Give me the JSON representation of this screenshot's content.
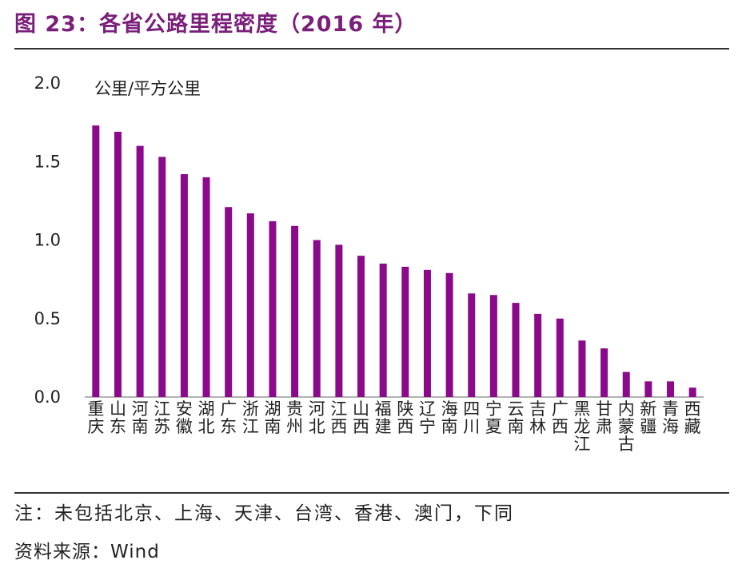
{
  "figure": {
    "title": "图 23：各省公路里程密度（2016 年）",
    "note": "注：未包括北京、上海、天津、台湾、香港、澳门，下同",
    "source": "资料来源：Wind"
  },
  "colors": {
    "bar": "#8b0a8b",
    "title": "#7a1f7a",
    "axis": "#999999"
  },
  "chart_data": {
    "type": "bar",
    "unit_label": "公里/平方公里",
    "categories": [
      "重庆",
      "山东",
      "河南",
      "江苏",
      "安徽",
      "湖北",
      "广东",
      "浙江",
      "湖南",
      "贵州",
      "河北",
      "江西",
      "山西",
      "福建",
      "陕西",
      "辽宁",
      "海南",
      "四川",
      "宁夏",
      "云南",
      "吉林",
      "广西",
      "黑龙江",
      "甘肃",
      "内蒙古",
      "新疆",
      "青海",
      "西藏"
    ],
    "values": [
      1.73,
      1.69,
      1.6,
      1.53,
      1.42,
      1.4,
      1.21,
      1.17,
      1.12,
      1.09,
      1.0,
      0.97,
      0.9,
      0.85,
      0.83,
      0.81,
      0.79,
      0.66,
      0.65,
      0.6,
      0.53,
      0.5,
      0.36,
      0.31,
      0.16,
      0.1,
      0.1,
      0.06
    ],
    "ylim": [
      0,
      2.0
    ],
    "yticks": [
      "0.0",
      "0.5",
      "1.0",
      "1.5",
      "2.0"
    ],
    "ytick_values": [
      0,
      0.5,
      1.0,
      1.5,
      2.0
    ],
    "grid": false,
    "legend": "none"
  }
}
